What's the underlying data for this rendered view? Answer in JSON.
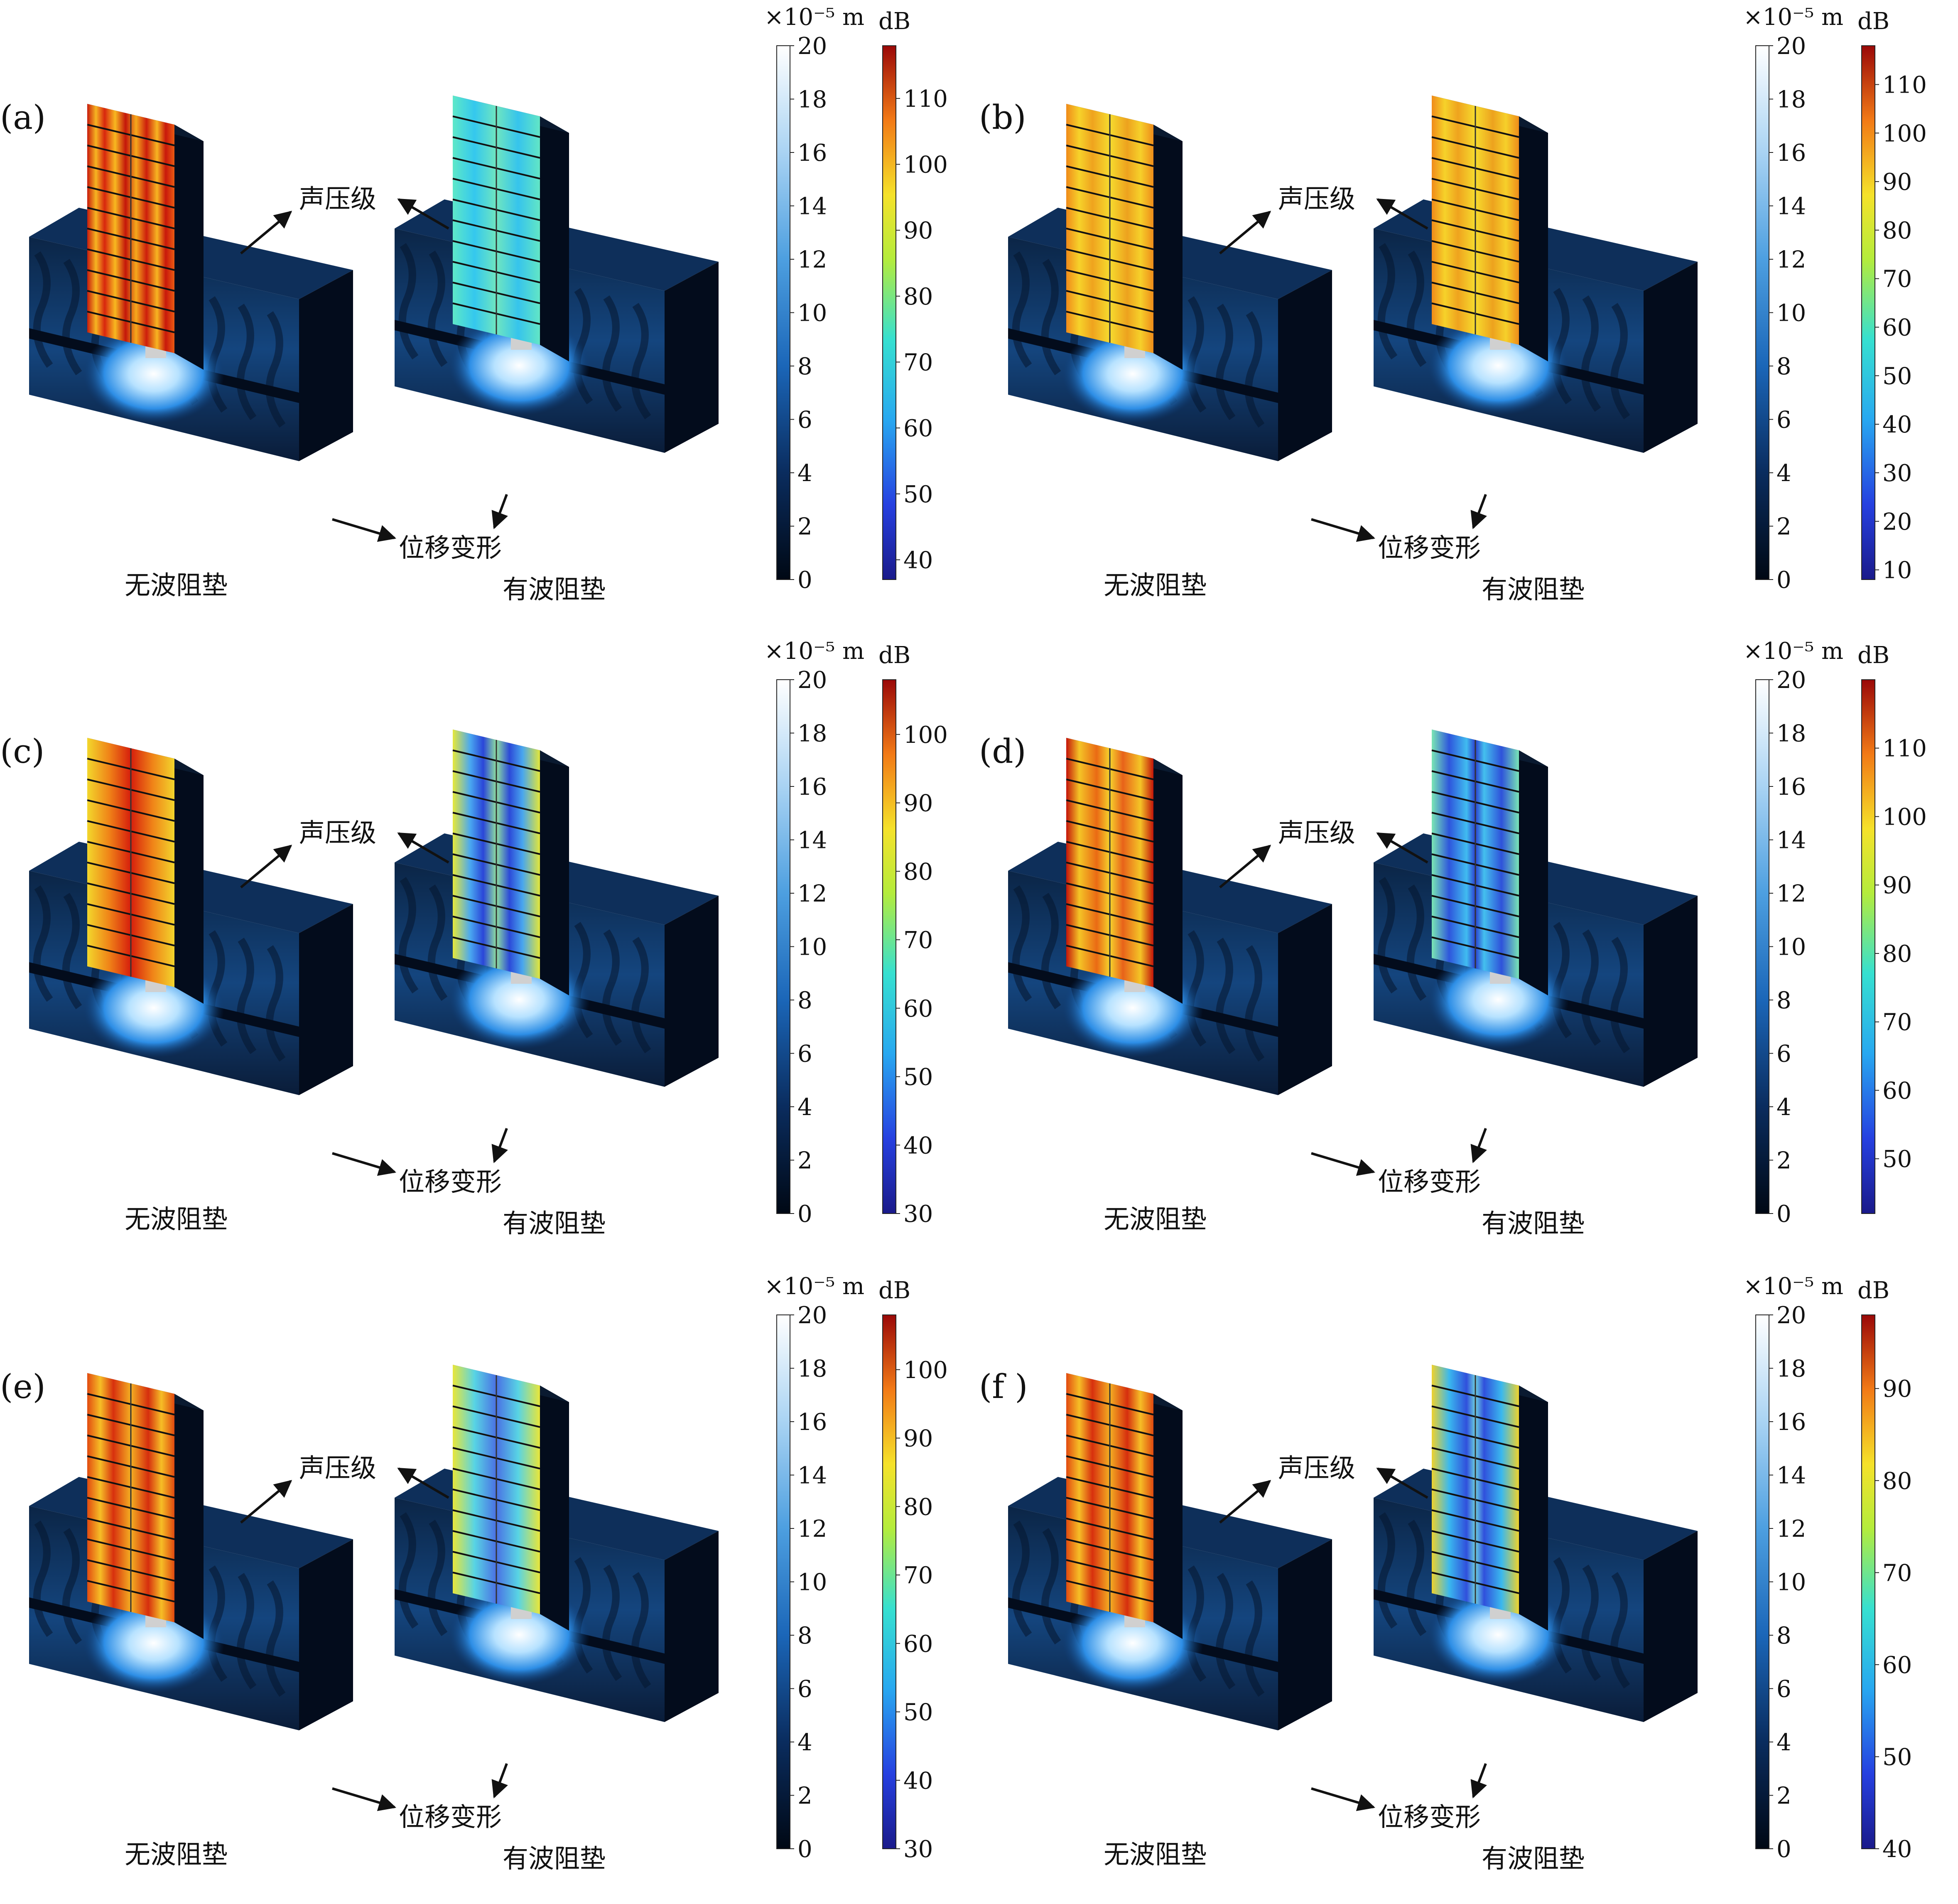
{
  "figure": {
    "labels": {
      "spl": "声压级",
      "disp": "位移变形",
      "left": "无波阻垫",
      "right": "有波阻垫"
    },
    "disp_unit": "×10⁻⁵ m",
    "spl_unit": "dB",
    "disp_ticks": [
      0,
      2,
      4,
      6,
      8,
      10,
      12,
      14,
      16,
      18,
      20
    ],
    "panels": [
      {
        "id": "a",
        "letter": "(a)",
        "db_ticks": [
          40,
          50,
          60,
          70,
          80,
          90,
          100,
          110
        ],
        "db_range": [
          37,
          118
        ],
        "left_level": "high-red",
        "right_level": "cyan"
      },
      {
        "id": "b",
        "letter": "(b)",
        "db_ticks": [
          10,
          20,
          30,
          40,
          50,
          60,
          70,
          80,
          90,
          100,
          110
        ],
        "db_range": [
          8,
          118
        ],
        "left_level": "orange",
        "right_level": "orange"
      },
      {
        "id": "c",
        "letter": "(c)",
        "db_ticks": [
          30,
          40,
          50,
          60,
          70,
          80,
          90,
          100
        ],
        "db_range": [
          30,
          108
        ],
        "left_level": "red-yellow",
        "right_level": "blue-yellow"
      },
      {
        "id": "d",
        "letter": "(d)",
        "db_ticks": [
          50,
          60,
          70,
          80,
          90,
          100,
          110
        ],
        "db_range": [
          42,
          120
        ],
        "left_level": "red",
        "right_level": "cyan-blue"
      },
      {
        "id": "e",
        "letter": "(e)",
        "db_ticks": [
          30,
          40,
          50,
          60,
          70,
          80,
          90,
          100
        ],
        "db_range": [
          30,
          108
        ],
        "left_level": "orange-red",
        "right_level": "yellow-cyan"
      },
      {
        "id": "f",
        "letter": "(f )",
        "db_ticks": [
          40,
          50,
          60,
          70,
          80,
          90
        ],
        "db_range": [
          40,
          98
        ],
        "left_level": "orange-red",
        "right_level": "yellow-blue"
      }
    ]
  }
}
